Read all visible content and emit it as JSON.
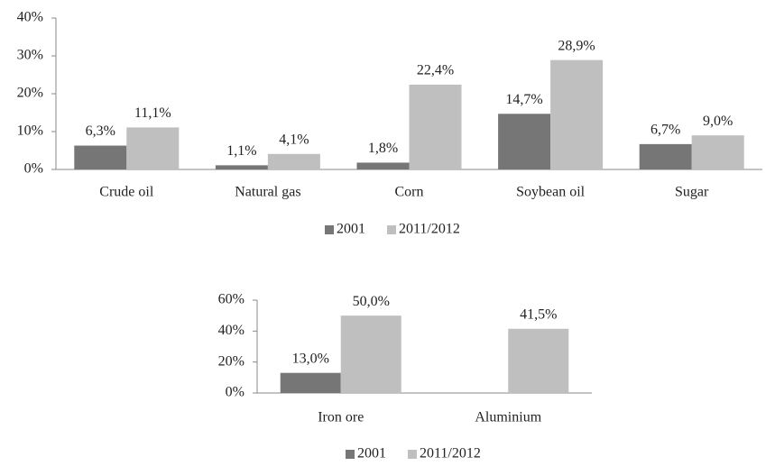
{
  "chart_data": [
    {
      "type": "bar",
      "categories": [
        "Crude oil",
        "Natural gas",
        "Corn",
        "Soybean oil",
        "Sugar"
      ],
      "series": [
        {
          "name": "2001",
          "color": "#767676",
          "values": [
            6.3,
            1.1,
            1.8,
            14.7,
            6.7
          ],
          "value_labels": [
            "6,3%",
            "1,1%",
            "1,8%",
            "14,7%",
            "6,7%"
          ]
        },
        {
          "name": "2011/2012",
          "color": "#bfbfbf",
          "values": [
            11.1,
            4.1,
            22.4,
            28.9,
            9.0
          ],
          "value_labels": [
            "11,1%",
            "4,1%",
            "22,4%",
            "28,9%",
            "9,0%"
          ]
        }
      ],
      "ylim": [
        0,
        40
      ],
      "yticks": [
        {
          "value": 0,
          "label": "0%"
        },
        {
          "value": 10,
          "label": "10%"
        },
        {
          "value": 20,
          "label": "20%"
        },
        {
          "value": 30,
          "label": "30%"
        },
        {
          "value": 40,
          "label": "40%"
        }
      ],
      "grid": false,
      "legend": "bottom"
    },
    {
      "type": "bar",
      "categories": [
        "Iron ore",
        "Aluminium"
      ],
      "series": [
        {
          "name": "2001",
          "color": "#767676",
          "values": [
            13.0,
            null
          ],
          "value_labels": [
            "13,0%",
            null
          ]
        },
        {
          "name": "2011/2012",
          "color": "#bfbfbf",
          "values": [
            50.0,
            41.5
          ],
          "value_labels": [
            "50,0%",
            "41,5%"
          ]
        }
      ],
      "ylim": [
        0,
        60
      ],
      "yticks": [
        {
          "value": 0,
          "label": "0%"
        },
        {
          "value": 20,
          "label": "20%"
        },
        {
          "value": 40,
          "label": "40%"
        },
        {
          "value": 60,
          "label": "60%"
        }
      ],
      "grid": false,
      "legend": "bottom"
    }
  ]
}
